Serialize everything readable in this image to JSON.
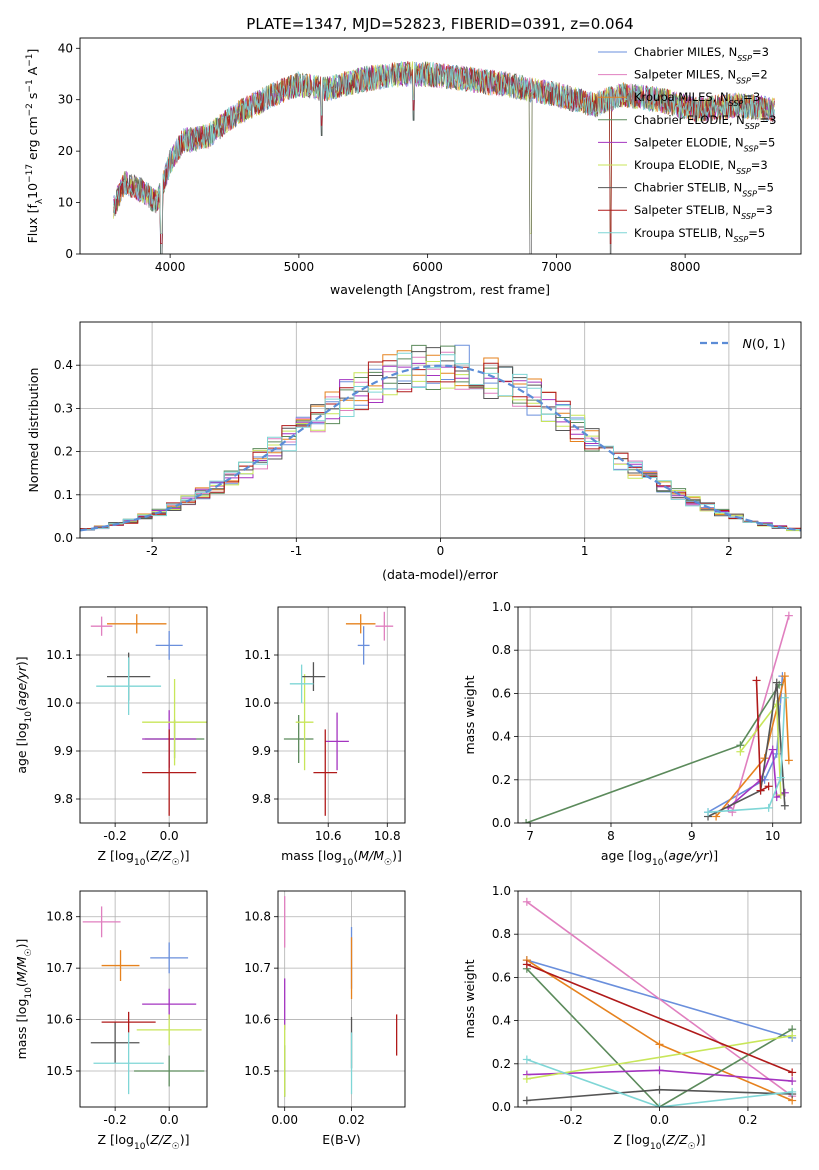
{
  "title": "PLATE=1347, MJD=52823, FIBERID=0391, z=0.064",
  "colors": {
    "Chabrier MILES": "#6a8fdc",
    "Salpeter MILES": "#e07fbf",
    "Kroupa MILES": "#e6821e",
    "Chabrier ELODIE": "#5b8a5b",
    "Salpeter ELODIE": "#a434c0",
    "Kroupa ELODIE": "#c8e65a",
    "Chabrier STELIB": "#555555",
    "Salpeter STELIB": "#b01a1a",
    "Kroupa STELIB": "#7fd6d6"
  },
  "legend": [
    {
      "model": "Chabrier MILES",
      "n": "3"
    },
    {
      "model": "Salpeter MILES",
      "n": "2"
    },
    {
      "model": "Kroupa MILES",
      "n": "3"
    },
    {
      "model": "Chabrier ELODIE",
      "n": "3"
    },
    {
      "model": "Salpeter ELODIE",
      "n": "5"
    },
    {
      "model": "Kroupa ELODIE",
      "n": "3"
    },
    {
      "model": "Chabrier STELIB",
      "n": "5"
    },
    {
      "model": "Salpeter STELIB",
      "n": "3"
    },
    {
      "model": "Kroupa STELIB",
      "n": "5"
    }
  ],
  "chart_data": [
    {
      "id": "spectrum",
      "type": "line",
      "xlabel": "wavelength [Angstrom, rest frame]",
      "ylabel": "Flux [f_λ10^-17 erg cm^-2 s^-1 A^-1]",
      "xlim": [
        3300,
        8900
      ],
      "ylim": [
        0,
        42
      ],
      "xticks": [
        4000,
        5000,
        6000,
        7000,
        8000
      ],
      "yticks": [
        0,
        10,
        20,
        30,
        40
      ],
      "continuum": [
        [
          3560,
          9
        ],
        [
          3650,
          14
        ],
        [
          3800,
          12
        ],
        [
          3900,
          10
        ],
        [
          4000,
          18
        ],
        [
          4100,
          22
        ],
        [
          4300,
          23
        ],
        [
          4500,
          27
        ],
        [
          4800,
          31
        ],
        [
          5000,
          33
        ],
        [
          5200,
          32
        ],
        [
          5500,
          34
        ],
        [
          5800,
          35
        ],
        [
          6000,
          35
        ],
        [
          6300,
          34
        ],
        [
          6600,
          33
        ],
        [
          7000,
          31
        ],
        [
          7300,
          29
        ],
        [
          7500,
          31
        ],
        [
          7800,
          30
        ],
        [
          8100,
          28
        ],
        [
          8400,
          29
        ],
        [
          8700,
          28
        ]
      ],
      "absorption_lines": [
        [
          3932,
          0
        ],
        [
          5175,
          23
        ],
        [
          5893,
          26
        ],
        [
          6800,
          0
        ],
        [
          7420,
          0
        ]
      ]
    },
    {
      "id": "residuals",
      "type": "area",
      "xlabel": "(data-model)/error",
      "ylabel": "Normed distribution",
      "xlim": [
        -2.5,
        2.5
      ],
      "ylim": [
        0,
        0.5
      ],
      "xticks": [
        -2,
        -1,
        0,
        1,
        2
      ],
      "yticks": [
        0,
        0.1,
        0.2,
        0.3,
        0.4
      ],
      "legend_label": "N(0,1)",
      "legend_position": "top-right",
      "bins": 50
    },
    {
      "id": "age_vs_Z",
      "type": "scatter",
      "xlabel": "Z [log10(Z/Z☉)]",
      "ylabel": "age [log10(age/yr)]",
      "xlim": [
        -0.33,
        0.14
      ],
      "ylim": [
        9.75,
        10.2
      ],
      "xticks": [
        -0.2,
        0.0
      ],
      "yticks": [
        9.8,
        9.9,
        10.0,
        10.1
      ],
      "points": [
        {
          "model": "Chabrier MILES",
          "x": 0.0,
          "xe": 0.05,
          "y": 10.12,
          "ye": 0.03
        },
        {
          "model": "Salpeter MILES",
          "x": -0.25,
          "xe": 0.04,
          "y": 10.16,
          "ye": 0.02
        },
        {
          "model": "Kroupa MILES",
          "x": -0.12,
          "xe": 0.11,
          "y": 10.165,
          "ye": 0.02
        },
        {
          "model": "Chabrier ELODIE",
          "x": 0.02,
          "xe": 0.11,
          "y": 9.925,
          "ye": 0.04
        },
        {
          "model": "Salpeter ELODIE",
          "x": 0.0,
          "xe": 0.1,
          "y": 9.925,
          "ye": 0.06
        },
        {
          "model": "Kroupa ELODIE",
          "x": 0.02,
          "xe": 0.12,
          "y": 9.96,
          "ye": 0.09
        },
        {
          "model": "Chabrier STELIB",
          "x": -0.15,
          "xe": 0.08,
          "y": 10.055,
          "ye": 0.05
        },
        {
          "model": "Salpeter STELIB",
          "x": 0.0,
          "xe": 0.1,
          "y": 9.855,
          "ye": 0.09
        },
        {
          "model": "Kroupa STELIB",
          "x": -0.15,
          "xe": 0.12,
          "y": 10.035,
          "ye": 0.06
        }
      ]
    },
    {
      "id": "age_vs_mass",
      "type": "scatter",
      "xlabel": "mass [log10(M/M☉)]",
      "ylabel": "",
      "xlim": [
        10.43,
        10.86
      ],
      "ylim": [
        9.75,
        10.2
      ],
      "xticks": [
        10.6,
        10.8
      ],
      "yticks": [
        9.8,
        9.9,
        10.0,
        10.1
      ],
      "points": [
        {
          "model": "Chabrier MILES",
          "x": 10.72,
          "xe": 0.02,
          "y": 10.12,
          "ye": 0.04
        },
        {
          "model": "Salpeter MILES",
          "x": 10.79,
          "xe": 0.03,
          "y": 10.16,
          "ye": 0.03
        },
        {
          "model": "Kroupa MILES",
          "x": 10.71,
          "xe": 0.05,
          "y": 10.165,
          "ye": 0.02
        },
        {
          "model": "Chabrier ELODIE",
          "x": 10.5,
          "xe": 0.05,
          "y": 9.925,
          "ye": 0.05
        },
        {
          "model": "Salpeter ELODIE",
          "x": 10.63,
          "xe": 0.04,
          "y": 9.92,
          "ye": 0.06
        },
        {
          "model": "Kroupa ELODIE",
          "x": 10.52,
          "xe": 0.03,
          "y": 9.96,
          "ye": 0.1
        },
        {
          "model": "Chabrier STELIB",
          "x": 10.55,
          "xe": 0.04,
          "y": 10.055,
          "ye": 0.03
        },
        {
          "model": "Salpeter STELIB",
          "x": 10.59,
          "xe": 0.04,
          "y": 9.855,
          "ye": 0.09
        },
        {
          "model": "Kroupa STELIB",
          "x": 10.51,
          "xe": 0.04,
          "y": 10.04,
          "ye": 0.04
        }
      ]
    },
    {
      "id": "weight_vs_age",
      "type": "line",
      "xlabel": "age [log10(age/yr)]",
      "ylabel": "mass weight",
      "xlim": [
        6.85,
        10.35
      ],
      "ylim": [
        0,
        1
      ],
      "xticks": [
        7,
        8,
        9,
        10
      ],
      "yticks": [
        0,
        0.2,
        0.4,
        0.6,
        0.8,
        1.0
      ],
      "series": [
        {
          "name": "Chabrier MILES",
          "points": [
            [
              9.2,
              0.05
            ],
            [
              9.9,
              0.2
            ],
            [
              10.05,
              0.32
            ],
            [
              10.12,
              0.68
            ]
          ]
        },
        {
          "name": "Salpeter MILES",
          "points": [
            [
              9.5,
              0.05
            ],
            [
              10.2,
              0.96
            ]
          ]
        },
        {
          "name": "Kroupa MILES",
          "points": [
            [
              9.3,
              0.03
            ],
            [
              9.9,
              0.3
            ],
            [
              10.15,
              0.68
            ],
            [
              10.2,
              0.29
            ]
          ]
        },
        {
          "name": "Chabrier ELODIE",
          "points": [
            [
              6.95,
              0.0
            ],
            [
              9.6,
              0.36
            ],
            [
              10.08,
              0.64
            ]
          ]
        },
        {
          "name": "Salpeter ELODIE",
          "points": [
            [
              9.45,
              0.07
            ],
            [
              9.85,
              0.2
            ],
            [
              10.0,
              0.34
            ],
            [
              10.05,
              0.12
            ],
            [
              10.15,
              0.14
            ]
          ]
        },
        {
          "name": "Kroupa ELODIE",
          "points": [
            [
              9.6,
              0.33
            ],
            [
              10.05,
              0.55
            ],
            [
              10.1,
              0.13
            ]
          ]
        },
        {
          "name": "Chabrier STELIB",
          "points": [
            [
              9.2,
              0.03
            ],
            [
              9.85,
              0.15
            ],
            [
              10.05,
              0.65
            ],
            [
              10.15,
              0.08
            ]
          ]
        },
        {
          "name": "Salpeter STELIB",
          "points": [
            [
              9.8,
              0.66
            ],
            [
              9.85,
              0.15
            ],
            [
              9.95,
              0.17
            ]
          ]
        },
        {
          "name": "Kroupa STELIB",
          "points": [
            [
              9.2,
              0.05
            ],
            [
              9.95,
              0.07
            ],
            [
              10.1,
              0.21
            ],
            [
              10.15,
              0.58
            ]
          ]
        }
      ]
    },
    {
      "id": "mass_vs_Z",
      "type": "scatter",
      "xlabel": "Z [log10(Z/Z☉)]",
      "ylabel": "mass [log10(M/M☉)]",
      "xlim": [
        -0.33,
        0.14
      ],
      "ylim": [
        10.43,
        10.85
      ],
      "xticks": [
        -0.2,
        0.0
      ],
      "yticks": [
        10.5,
        10.6,
        10.7,
        10.8
      ],
      "points": [
        {
          "model": "Chabrier MILES",
          "x": 0.0,
          "xe": 0.07,
          "y": 10.72,
          "ye": 0.03
        },
        {
          "model": "Salpeter MILES",
          "x": -0.25,
          "xe": 0.07,
          "y": 10.79,
          "ye": 0.03
        },
        {
          "model": "Kroupa MILES",
          "x": -0.18,
          "xe": 0.07,
          "y": 10.705,
          "ye": 0.03
        },
        {
          "model": "Chabrier ELODIE",
          "x": 0.0,
          "xe": 0.13,
          "y": 10.5,
          "ye": 0.03
        },
        {
          "model": "Salpeter ELODIE",
          "x": 0.0,
          "xe": 0.1,
          "y": 10.63,
          "ye": 0.03
        },
        {
          "model": "Kroupa ELODIE",
          "x": 0.0,
          "xe": 0.12,
          "y": 10.58,
          "ye": 0.03
        },
        {
          "model": "Chabrier STELIB",
          "x": -0.2,
          "xe": 0.09,
          "y": 10.555,
          "ye": 0.04
        },
        {
          "model": "Salpeter STELIB",
          "x": -0.15,
          "xe": 0.1,
          "y": 10.595,
          "ye": 0.02
        },
        {
          "model": "Kroupa STELIB",
          "x": -0.15,
          "xe": 0.13,
          "y": 10.515,
          "ye": 0.06
        }
      ]
    },
    {
      "id": "mass_vs_EBV",
      "type": "scatter",
      "xlabel": "E(B-V)",
      "ylabel": "",
      "xlim": [
        -0.002,
        0.036
      ],
      "ylim": [
        10.43,
        10.85
      ],
      "xticks": [
        0.0,
        0.02
      ],
      "yticks": [
        10.5,
        10.6,
        10.7,
        10.8
      ],
      "points": [
        {
          "model": "Chabrier MILES",
          "x": 0.02,
          "xe": 0,
          "y": 10.72,
          "ye": 0.06
        },
        {
          "model": "Salpeter MILES",
          "x": 0.0,
          "xe": 0,
          "y": 10.79,
          "ye": 0.05
        },
        {
          "model": "Kroupa MILES",
          "x": 0.02,
          "xe": 0,
          "y": 10.7,
          "ye": 0.06
        },
        {
          "model": "Chabrier ELODIE",
          "x": 0.0,
          "xe": 0,
          "y": 10.5,
          "ye": 0.05
        },
        {
          "model": "Salpeter ELODIE",
          "x": 0.0,
          "xe": 0,
          "y": 10.63,
          "ye": 0.05
        },
        {
          "model": "Kroupa ELODIE",
          "x": 0.0,
          "xe": 0,
          "y": 10.52,
          "ye": 0.07
        },
        {
          "model": "Chabrier STELIB",
          "x": 0.02,
          "xe": 0,
          "y": 10.555,
          "ye": 0.05
        },
        {
          "model": "Salpeter STELIB",
          "x": 0.0335,
          "xe": 0,
          "y": 10.57,
          "ye": 0.04
        },
        {
          "model": "Kroupa STELIB",
          "x": 0.02,
          "xe": 0,
          "y": 10.515,
          "ye": 0.06
        }
      ]
    },
    {
      "id": "weight_vs_Z",
      "type": "line",
      "xlabel": "Z [log10(Z/Z☉)]",
      "ylabel": "mass weight",
      "xlim": [
        -0.32,
        0.32
      ],
      "ylim": [
        0,
        1
      ],
      "xticks": [
        -0.2,
        0.0,
        0.2
      ],
      "yticks": [
        0,
        0.2,
        0.4,
        0.6,
        0.8,
        1.0
      ],
      "series": [
        {
          "name": "Chabrier MILES",
          "points": [
            [
              -0.3,
              0.68
            ],
            [
              0.3,
              0.32
            ]
          ]
        },
        {
          "name": "Salpeter MILES",
          "points": [
            [
              -0.3,
              0.95
            ],
            [
              0.3,
              0.05
            ]
          ]
        },
        {
          "name": "Kroupa MILES",
          "points": [
            [
              -0.3,
              0.68
            ],
            [
              0.0,
              0.29
            ],
            [
              0.3,
              0.03
            ]
          ]
        },
        {
          "name": "Chabrier ELODIE",
          "points": [
            [
              -0.3,
              0.64
            ],
            [
              0.0,
              0.0
            ],
            [
              0.3,
              0.36
            ]
          ]
        },
        {
          "name": "Salpeter ELODIE",
          "points": [
            [
              -0.3,
              0.15
            ],
            [
              0.0,
              0.17
            ],
            [
              0.3,
              0.12
            ]
          ]
        },
        {
          "name": "Kroupa ELODIE",
          "points": [
            [
              -0.3,
              0.13
            ],
            [
              0.3,
              0.33
            ]
          ]
        },
        {
          "name": "Chabrier STELIB",
          "points": [
            [
              -0.3,
              0.03
            ],
            [
              0.0,
              0.08
            ],
            [
              0.3,
              0.06
            ]
          ]
        },
        {
          "name": "Salpeter STELIB",
          "points": [
            [
              -0.3,
              0.66
            ],
            [
              0.3,
              0.16
            ]
          ]
        },
        {
          "name": "Kroupa STELIB",
          "points": [
            [
              -0.3,
              0.22
            ],
            [
              0.0,
              0.0
            ],
            [
              0.3,
              0.07
            ]
          ]
        }
      ]
    }
  ]
}
